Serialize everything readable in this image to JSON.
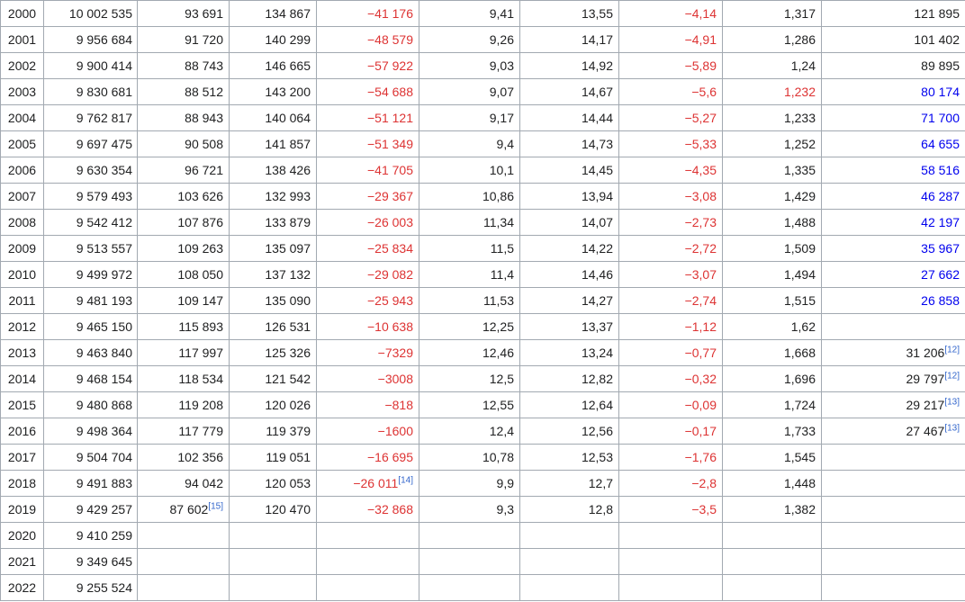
{
  "rows": [
    {
      "year": "2000",
      "population": "10 002 535",
      "births": "93 691",
      "deaths": "134 867",
      "natural_change": "−41 176",
      "birth_rate": "9,41",
      "death_rate": "13,55",
      "natural_change_rate": "−4,14",
      "fertility": "1,317",
      "extra": "121 895",
      "extra_color": "#202122"
    },
    {
      "year": "2001",
      "population": "9 956 684",
      "births": "91 720",
      "deaths": "140 299",
      "natural_change": "−48 579",
      "birth_rate": "9,26",
      "death_rate": "14,17",
      "natural_change_rate": "−4,91",
      "fertility": "1,286",
      "extra": "101 402",
      "extra_color": "#202122"
    },
    {
      "year": "2002",
      "population": "9 900 414",
      "births": "88 743",
      "deaths": "146 665",
      "natural_change": "−57 922",
      "birth_rate": "9,03",
      "death_rate": "14,92",
      "natural_change_rate": "−5,89",
      "fertility": "1,24",
      "extra": "89 895",
      "extra_color": "#202122"
    },
    {
      "year": "2003",
      "population": "9 830 681",
      "births": "88 512",
      "deaths": "143 200",
      "natural_change": "−54 688",
      "birth_rate": "9,07",
      "death_rate": "14,67",
      "natural_change_rate": "−5,6",
      "fertility": "1,232",
      "fertility_color": "#dd3333",
      "extra": "80 174",
      "extra_color": "#0000ee"
    },
    {
      "year": "2004",
      "population": "9 762 817",
      "births": "88 943",
      "deaths": "140 064",
      "natural_change": "−51 121",
      "birth_rate": "9,17",
      "death_rate": "14,44",
      "natural_change_rate": "−5,27",
      "fertility": "1,233",
      "extra": "71 700",
      "extra_color": "#0000ee"
    },
    {
      "year": "2005",
      "population": "9 697 475",
      "births": "90 508",
      "deaths": "141 857",
      "natural_change": "−51 349",
      "birth_rate": "9,4",
      "death_rate": "14,73",
      "natural_change_rate": "−5,33",
      "fertility": "1,252",
      "extra": "64 655",
      "extra_color": "#0000ee"
    },
    {
      "year": "2006",
      "population": "9 630 354",
      "births": "96 721",
      "deaths": "138 426",
      "natural_change": "−41 705",
      "birth_rate": "10,1",
      "death_rate": "14,45",
      "natural_change_rate": "−4,35",
      "fertility": "1,335",
      "extra": "58 516",
      "extra_color": "#0000ee"
    },
    {
      "year": "2007",
      "population": "9 579 493",
      "births": "103 626",
      "deaths": "132 993",
      "natural_change": "−29 367",
      "birth_rate": "10,86",
      "death_rate": "13,94",
      "natural_change_rate": "−3,08",
      "fertility": "1,429",
      "extra": "46 287",
      "extra_color": "#0000ee"
    },
    {
      "year": "2008",
      "population": "9 542 412",
      "births": "107 876",
      "deaths": "133 879",
      "natural_change": "−26 003",
      "birth_rate": "11,34",
      "death_rate": "14,07",
      "natural_change_rate": "−2,73",
      "fertility": "1,488",
      "extra": "42 197",
      "extra_color": "#0000ee"
    },
    {
      "year": "2009",
      "population": "9 513 557",
      "births": "109 263",
      "deaths": "135 097",
      "natural_change": "−25 834",
      "birth_rate": "11,5",
      "death_rate": "14,22",
      "natural_change_rate": "−2,72",
      "fertility": "1,509",
      "extra": "35 967",
      "extra_color": "#0000ee"
    },
    {
      "year": "2010",
      "population": "9 499 972",
      "births": "108 050",
      "deaths": "137 132",
      "natural_change": "−29 082",
      "birth_rate": "11,4",
      "death_rate": "14,46",
      "natural_change_rate": "−3,07",
      "fertility": "1,494",
      "extra": "27 662",
      "extra_color": "#0000ee"
    },
    {
      "year": "2011",
      "population": "9 481 193",
      "births": "109 147",
      "deaths": "135 090",
      "natural_change": "−25 943",
      "birth_rate": "11,53",
      "death_rate": "14,27",
      "natural_change_rate": "−2,74",
      "fertility": "1,515",
      "extra": "26 858",
      "extra_color": "#0000ee"
    },
    {
      "year": "2012",
      "population": "9 465 150",
      "births": "115 893",
      "deaths": "126 531",
      "natural_change": "−10 638",
      "birth_rate": "12,25",
      "death_rate": "13,37",
      "natural_change_rate": "−1,12",
      "fertility": "1,62",
      "extra": "",
      "extra_color": "#202122"
    },
    {
      "year": "2013",
      "population": "9 463 840",
      "births": "117 997",
      "deaths": "125 326",
      "natural_change": "−7329",
      "birth_rate": "12,46",
      "death_rate": "13,24",
      "natural_change_rate": "−0,77",
      "fertility": "1,668",
      "extra": "31 206",
      "extra_ref": "[12]",
      "extra_color": "#202122"
    },
    {
      "year": "2014",
      "population": "9 468 154",
      "births": "118 534",
      "deaths": "121 542",
      "natural_change": "−3008",
      "birth_rate": "12,5",
      "death_rate": "12,82",
      "natural_change_rate": "−0,32",
      "fertility": "1,696",
      "extra": "29 797",
      "extra_ref": "[12]",
      "extra_color": "#202122"
    },
    {
      "year": "2015",
      "population": "9 480 868",
      "births": "119 208",
      "deaths": "120 026",
      "natural_change": "−818",
      "birth_rate": "12,55",
      "death_rate": "12,64",
      "natural_change_rate": "−0,09",
      "fertility": "1,724",
      "extra": "29 217",
      "extra_ref": "[13]",
      "extra_color": "#202122"
    },
    {
      "year": "2016",
      "population": "9 498 364",
      "births": "117 779",
      "deaths": "119 379",
      "natural_change": "−1600",
      "birth_rate": "12,4",
      "death_rate": "12,56",
      "natural_change_rate": "−0,17",
      "fertility": "1,733",
      "extra": "27 467",
      "extra_ref": "[13]",
      "extra_color": "#202122"
    },
    {
      "year": "2017",
      "population": "9 504 704",
      "births": "102 356",
      "deaths": "119 051",
      "natural_change": "−16 695",
      "birth_rate": "10,78",
      "death_rate": "12,53",
      "natural_change_rate": "−1,76",
      "fertility": "1,545",
      "extra": "",
      "extra_color": "#202122"
    },
    {
      "year": "2018",
      "population": "9 491 883",
      "births": "94 042",
      "deaths": "120 053",
      "natural_change": "−26 011",
      "natural_change_ref": "[14]",
      "birth_rate": "9,9",
      "death_rate": "12,7",
      "natural_change_rate": "−2,8",
      "fertility": "1,448",
      "extra": "",
      "extra_color": "#202122"
    },
    {
      "year": "2019",
      "population": "9 429 257",
      "births": "87 602",
      "births_ref": "[15]",
      "deaths": "120 470",
      "natural_change": "−32 868",
      "birth_rate": "9,3",
      "death_rate": "12,8",
      "natural_change_rate": "−3,5",
      "fertility": "1,382",
      "extra": "",
      "extra_color": "#202122"
    },
    {
      "year": "2020",
      "population": "9 410 259",
      "births": "",
      "deaths": "",
      "natural_change": "",
      "birth_rate": "",
      "death_rate": "",
      "natural_change_rate": "",
      "fertility": "",
      "extra": "",
      "extra_color": "#202122"
    },
    {
      "year": "2021",
      "population": "9 349 645",
      "births": "",
      "deaths": "",
      "natural_change": "",
      "birth_rate": "",
      "death_rate": "",
      "natural_change_rate": "",
      "fertility": "",
      "extra": "",
      "extra_color": "#202122"
    },
    {
      "year": "2022",
      "population": "9 255 524",
      "births": "",
      "deaths": "",
      "natural_change": "",
      "birth_rate": "",
      "death_rate": "",
      "natural_change_rate": "",
      "fertility": "",
      "extra": "",
      "extra_color": "#202122"
    }
  ],
  "colors": {
    "text": "#202122",
    "negative": "#dd3333",
    "link_blue": "#0000ee",
    "reference": "#3366cc",
    "border": "#a2a9b1"
  }
}
